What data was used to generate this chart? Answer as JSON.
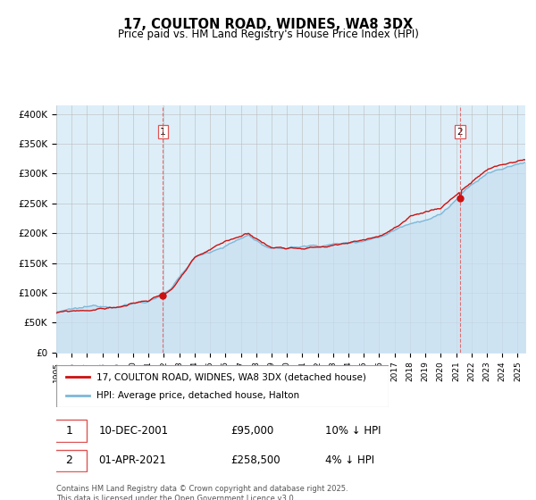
{
  "title": "17, COULTON ROAD, WIDNES, WA8 3DX",
  "subtitle": "Price paid vs. HM Land Registry's House Price Index (HPI)",
  "ylabel_ticks": [
    "£0",
    "£50K",
    "£100K",
    "£150K",
    "£200K",
    "£250K",
    "£300K",
    "£350K",
    "£400K"
  ],
  "ytick_values": [
    0,
    50000,
    100000,
    150000,
    200000,
    250000,
    300000,
    350000,
    400000
  ],
  "ylim": [
    0,
    415000
  ],
  "xlim_start": 1995.0,
  "xlim_end": 2025.5,
  "hpi_color": "#7eb8d8",
  "hpi_fill_color": "#c8dff0",
  "price_color": "#cc1111",
  "background_color": "#ddeef8",
  "grid_color": "#bbbbbb",
  "vline_color": "#dd5555",
  "sale1_date": 2001.94,
  "sale1_price": 95000,
  "sale2_date": 2021.25,
  "sale2_price": 258500,
  "legend_line1": "17, COULTON ROAD, WIDNES, WA8 3DX (detached house)",
  "legend_line2": "HPI: Average price, detached house, Halton",
  "annotation1_date": "10-DEC-2001",
  "annotation1_price": "£95,000",
  "annotation1_hpi": "10% ↓ HPI",
  "annotation2_date": "01-APR-2021",
  "annotation2_price": "£258,500",
  "annotation2_hpi": "4% ↓ HPI",
  "footer": "Contains HM Land Registry data © Crown copyright and database right 2025.\nThis data is licensed under the Open Government Licence v3.0."
}
